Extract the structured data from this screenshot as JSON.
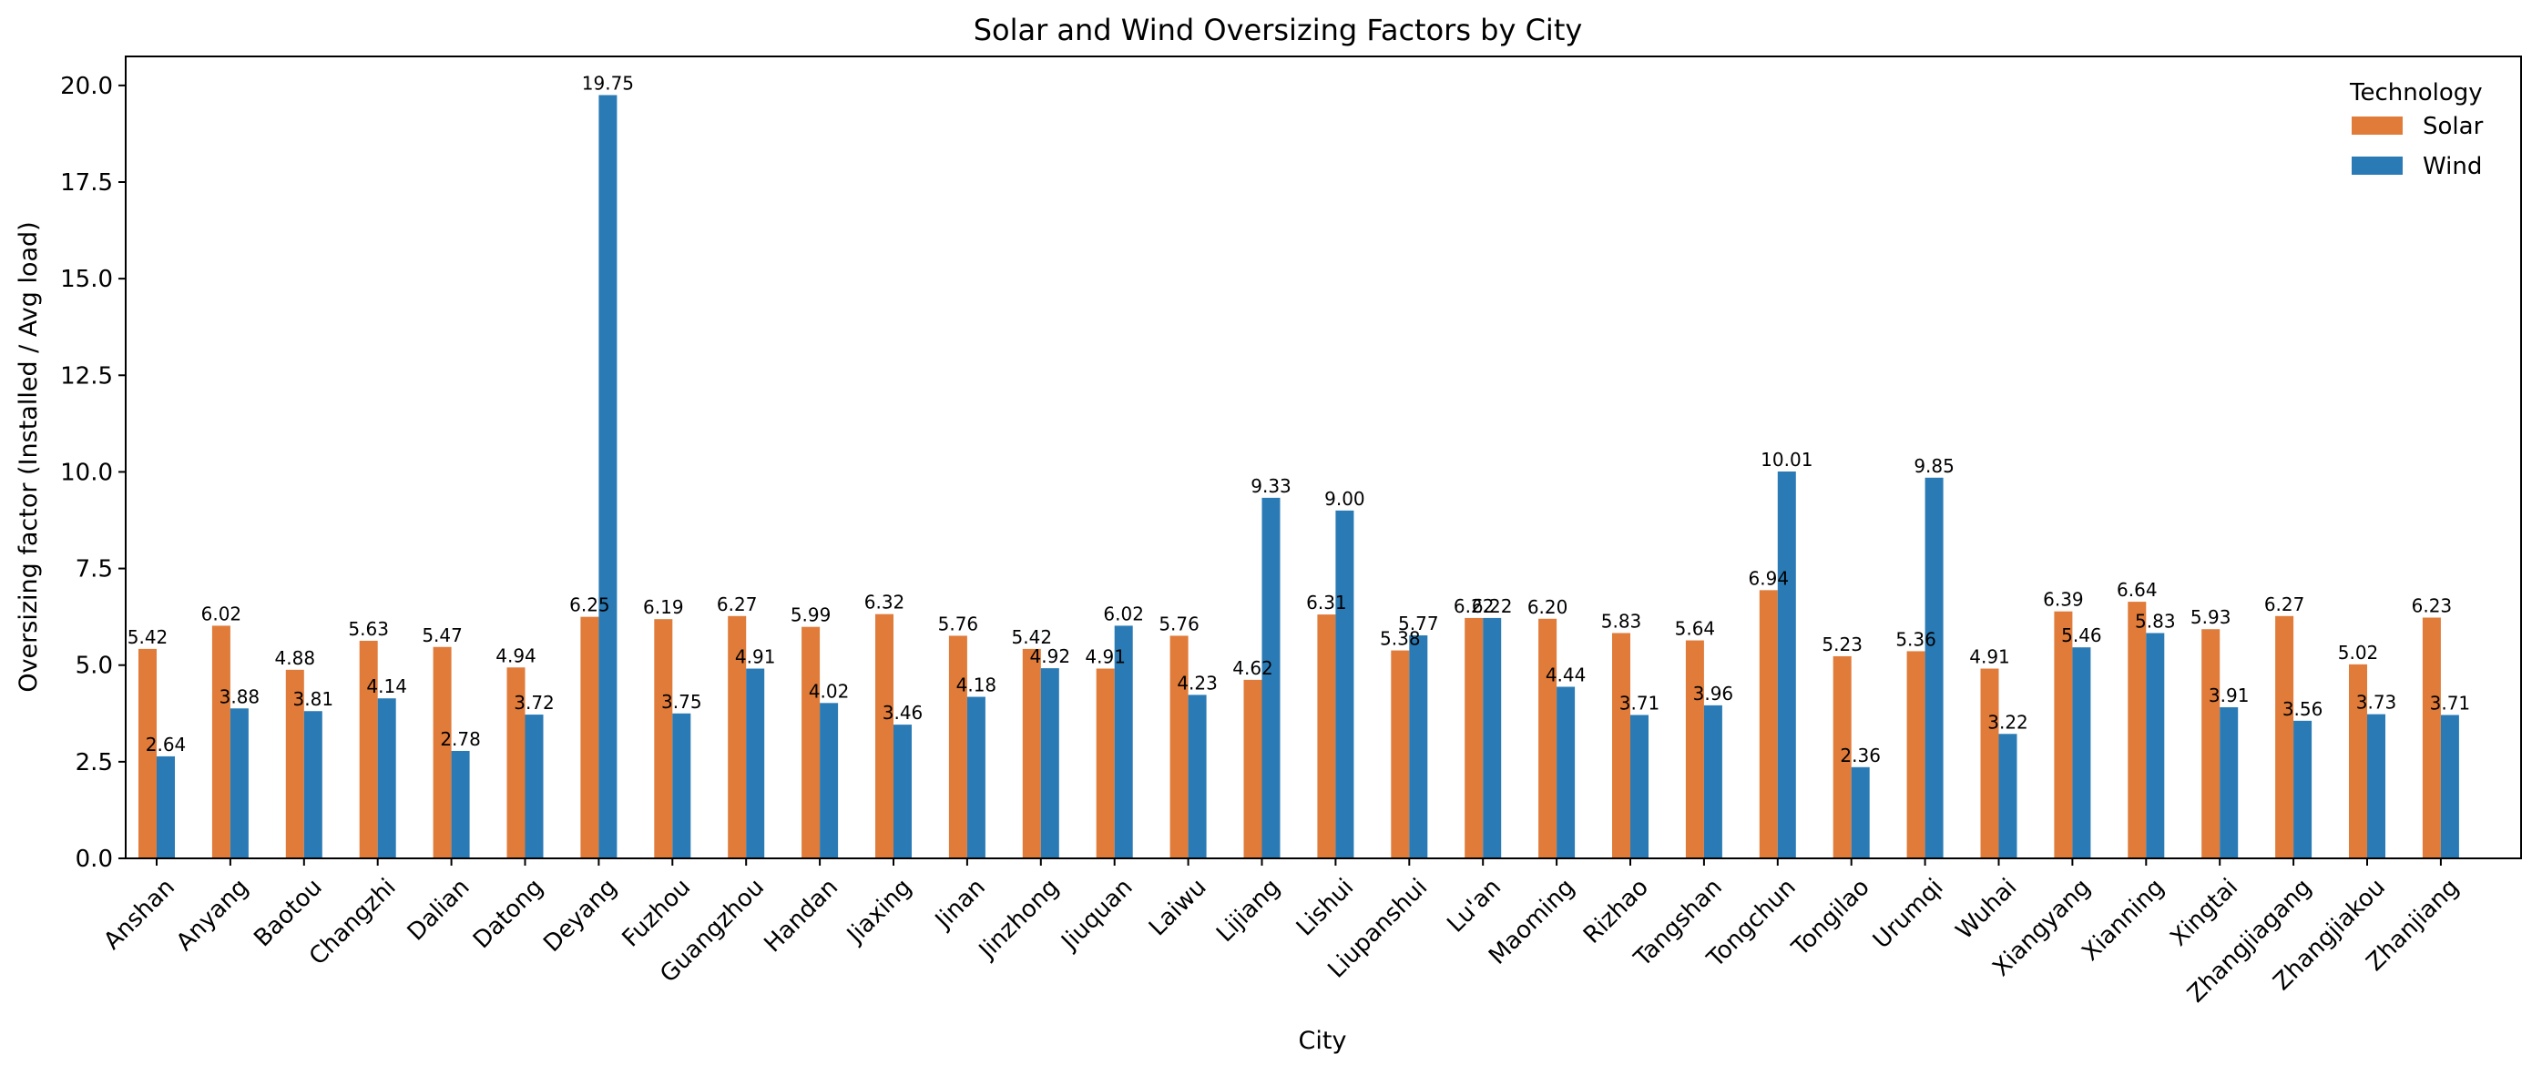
{
  "chart_data": {
    "type": "bar",
    "title": "Solar and Wind Oversizing Factors by City",
    "xlabel": "City",
    "ylabel": "Oversizing factor (Installed / Avg load)",
    "ylim": [
      0,
      20.75
    ],
    "yticks": [
      "0.0",
      "2.5",
      "5.0",
      "7.5",
      "10.0",
      "12.5",
      "15.0",
      "17.5",
      "20.0"
    ],
    "grid": false,
    "legend": {
      "title": "Technology",
      "placement": "top-right"
    },
    "categories": [
      "Anshan",
      "Anyang",
      "Baotou",
      "Changzhi",
      "Dalian",
      "Datong",
      "Deyang",
      "Fuzhou",
      "Guangzhou",
      "Handan",
      "Jiaxing",
      "Jinan",
      "Jinzhong",
      "Jiuquan",
      "Laiwu",
      "Lijiang",
      "Lishui",
      "Liupanshui",
      "Lu'an",
      "Maoming",
      "Rizhao",
      "Tangshan",
      "Tongchun",
      "Tongilao",
      "Urumqi",
      "Wuhai",
      "Xiangyang",
      "Xianning",
      "Xingtai",
      "Zhangjiagang",
      "Zhangjiakou",
      "Zhanjiang"
    ],
    "series": [
      {
        "name": "Solar",
        "color": "#e07b39",
        "values": [
          5.42,
          6.02,
          4.88,
          5.63,
          5.47,
          4.94,
          6.25,
          6.19,
          6.27,
          5.99,
          6.32,
          5.76,
          5.42,
          4.91,
          5.76,
          4.62,
          6.31,
          5.38,
          6.22,
          6.2,
          5.83,
          5.64,
          6.94,
          5.23,
          5.36,
          4.91,
          6.39,
          6.64,
          5.93,
          6.27,
          5.02,
          6.23
        ],
        "labels": [
          "5.42",
          "6.02",
          "4.88",
          "5.63",
          "5.47",
          "4.94",
          "6.25",
          "6.19",
          "6.27",
          "5.99",
          "6.32",
          "5.76",
          "5.42",
          "4.91",
          "5.76",
          "4.62",
          "6.31",
          "5.38",
          "6.22",
          "6.20",
          "5.83",
          "5.64",
          "6.94",
          "5.23",
          "5.36",
          "4.91",
          "6.39",
          "6.64",
          "5.93",
          "6.27",
          "5.02",
          "6.23"
        ]
      },
      {
        "name": "Wind",
        "color": "#2a7bb5",
        "values": [
          2.64,
          3.88,
          3.81,
          4.14,
          2.78,
          3.72,
          19.75,
          3.75,
          4.91,
          4.02,
          3.46,
          4.18,
          4.92,
          6.02,
          4.23,
          9.33,
          9.0,
          5.77,
          6.22,
          4.44,
          3.71,
          3.96,
          10.01,
          2.36,
          9.85,
          3.22,
          5.46,
          5.83,
          3.91,
          3.56,
          3.73,
          3.71
        ],
        "labels": [
          "2.64",
          "3.88",
          "3.81",
          "4.14",
          "2.78",
          "3.72",
          "19.75",
          "3.75",
          "4.91",
          "4.02",
          "3.46",
          "4.18",
          "4.92",
          "6.02",
          "4.23",
          "9.33",
          "9.00",
          "5.77",
          "6.22",
          "4.44",
          "3.71",
          "3.96",
          "10.01",
          "2.36",
          "9.85",
          "3.22",
          "5.46",
          "5.83",
          "3.91",
          "3.56",
          "3.73",
          "3.71"
        ]
      }
    ]
  }
}
